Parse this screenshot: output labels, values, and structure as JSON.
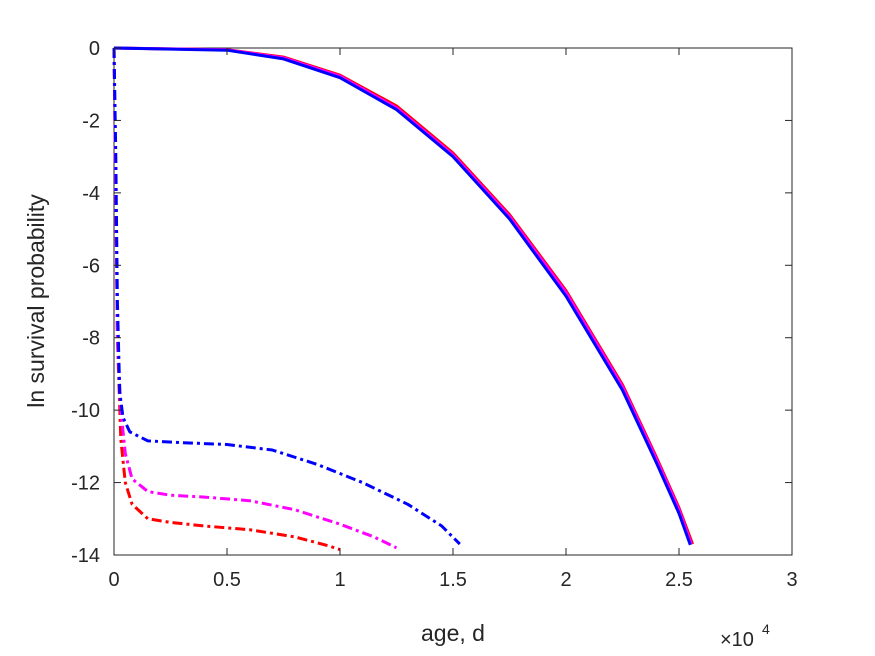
{
  "chart_data": {
    "type": "line",
    "xlabel": "age, d",
    "ylabel": "ln survival probability",
    "x_multiplier": {
      "base": "×10",
      "exponent": "4"
    },
    "xlim": [
      0,
      30000
    ],
    "ylim": [
      -14,
      0
    ],
    "xticks": [
      0,
      5000,
      10000,
      15000,
      20000,
      25000,
      30000
    ],
    "xtick_labels": [
      "0",
      "0.5",
      "1",
      "1.5",
      "2",
      "2.5",
      "3"
    ],
    "yticks": [
      0,
      -2,
      -4,
      -6,
      -8,
      -10,
      -12,
      -14
    ],
    "ytick_labels": [
      "0",
      "-2",
      "-4",
      "-6",
      "-8",
      "-10",
      "-12",
      "-14"
    ],
    "grid": false,
    "series": [
      {
        "color": "#ff0000",
        "style": "dashdot",
        "points": [
          [
            0,
            0
          ],
          [
            80,
            -4
          ],
          [
            150,
            -8
          ],
          [
            300,
            -10.8
          ],
          [
            500,
            -12
          ],
          [
            800,
            -12.6
          ],
          [
            1500,
            -13.0
          ],
          [
            2500,
            -13.1
          ],
          [
            4000,
            -13.2
          ],
          [
            6000,
            -13.3
          ],
          [
            8000,
            -13.5
          ],
          [
            9500,
            -13.75
          ],
          [
            10000,
            -13.85
          ]
        ]
      },
      {
        "color": "#ff00ff",
        "style": "dashdot",
        "points": [
          [
            0,
            0
          ],
          [
            80,
            -4
          ],
          [
            150,
            -8
          ],
          [
            300,
            -10
          ],
          [
            500,
            -11.2
          ],
          [
            800,
            -11.9
          ],
          [
            1500,
            -12.25
          ],
          [
            2500,
            -12.35
          ],
          [
            4000,
            -12.4
          ],
          [
            6000,
            -12.5
          ],
          [
            8000,
            -12.75
          ],
          [
            10000,
            -13.15
          ],
          [
            11500,
            -13.5
          ],
          [
            12500,
            -13.8
          ]
        ]
      },
      {
        "color": "#0000ff",
        "style": "dashdot",
        "points": [
          [
            0,
            0
          ],
          [
            80,
            -3
          ],
          [
            150,
            -7
          ],
          [
            250,
            -9.5
          ],
          [
            400,
            -10.2
          ],
          [
            700,
            -10.6
          ],
          [
            1500,
            -10.85
          ],
          [
            3000,
            -10.9
          ],
          [
            5000,
            -10.95
          ],
          [
            7000,
            -11.1
          ],
          [
            9000,
            -11.5
          ],
          [
            11000,
            -12.0
          ],
          [
            13000,
            -12.6
          ],
          [
            14500,
            -13.2
          ],
          [
            15300,
            -13.7
          ]
        ]
      },
      {
        "color": "#ff0000",
        "style": "solid",
        "points": [
          [
            0,
            0
          ],
          [
            5000,
            -0.05
          ],
          [
            7500,
            -0.25
          ],
          [
            10000,
            -0.75
          ],
          [
            12500,
            -1.6
          ],
          [
            15000,
            -2.9
          ],
          [
            17500,
            -4.6
          ],
          [
            20000,
            -6.7
          ],
          [
            22500,
            -9.3
          ],
          [
            24000,
            -11.3
          ],
          [
            25000,
            -12.7
          ],
          [
            25600,
            -13.7
          ]
        ]
      },
      {
        "color": "#ff00ff",
        "style": "solid",
        "points": [
          [
            0,
            0
          ],
          [
            5000,
            -0.05
          ],
          [
            7500,
            -0.27
          ],
          [
            10000,
            -0.78
          ],
          [
            12500,
            -1.65
          ],
          [
            15000,
            -2.95
          ],
          [
            17500,
            -4.65
          ],
          [
            20000,
            -6.75
          ],
          [
            22500,
            -9.35
          ],
          [
            24000,
            -11.35
          ],
          [
            25000,
            -12.75
          ],
          [
            25550,
            -13.7
          ]
        ]
      },
      {
        "color": "#0000ff",
        "style": "solid",
        "points": [
          [
            0,
            0
          ],
          [
            5000,
            -0.06
          ],
          [
            7500,
            -0.3
          ],
          [
            10000,
            -0.82
          ],
          [
            12500,
            -1.7
          ],
          [
            15000,
            -3.0
          ],
          [
            17500,
            -4.72
          ],
          [
            20000,
            -6.85
          ],
          [
            22500,
            -9.45
          ],
          [
            24000,
            -11.45
          ],
          [
            25000,
            -12.85
          ],
          [
            25500,
            -13.72
          ]
        ]
      }
    ]
  }
}
